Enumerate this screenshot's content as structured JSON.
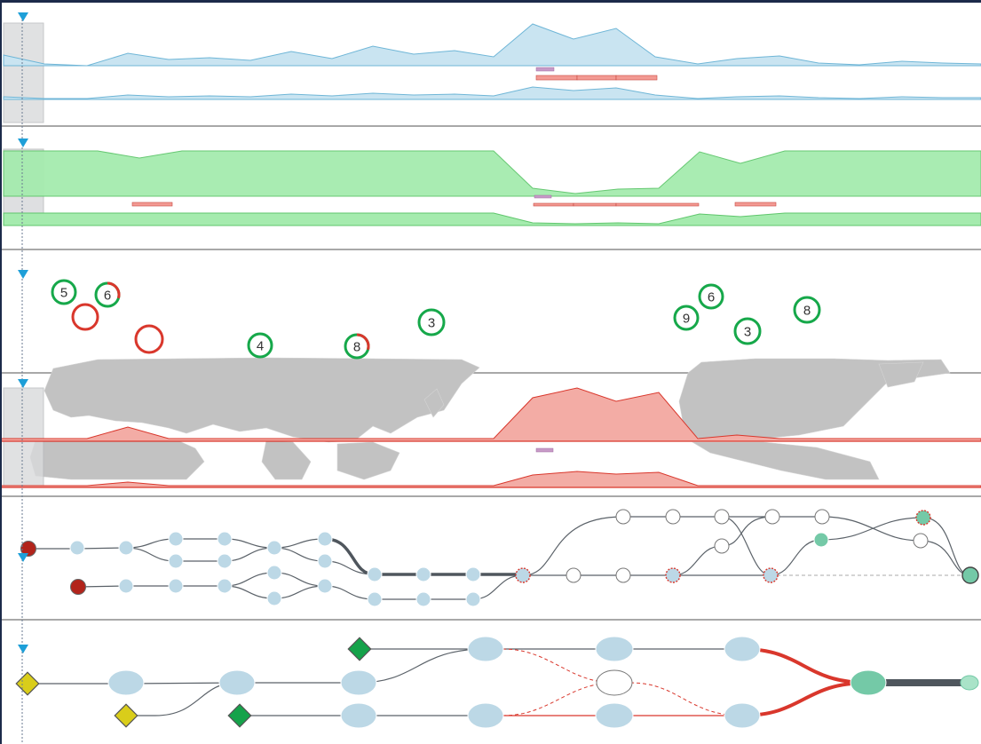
{
  "colors": {
    "accent": "#1e9fd8",
    "panel_divider": "#8c8c8c",
    "area_blue_fill": "#c9e4f1",
    "area_blue_stroke": "#6fb6d7",
    "area_green_fill": "#a5ebae",
    "area_green_stroke": "#5fc66c",
    "area_red_fill": "#f3aca5",
    "area_red_stroke": "#d9372c",
    "bar_red": "#f29a93",
    "bar_purple": "#c79ac7",
    "badge_green": "#16a84a",
    "badge_red": "#d9372c",
    "map_gray": "#c2c2c2",
    "node_blue": "#bcd8e6",
    "node_teal": "#74c9a7",
    "node_darkred": "#b2241b",
    "diamond_yellow": "#d9cd1a",
    "diamond_green": "#15a24a",
    "edge_dark": "#5b6269"
  },
  "badges": [
    {
      "label": "5",
      "state": "green"
    },
    {
      "label": "6",
      "state": "green-red"
    },
    {
      "label": "",
      "state": "red"
    },
    {
      "label": "",
      "state": "red"
    },
    {
      "label": "4",
      "state": "green"
    },
    {
      "label": "8",
      "state": "green-red"
    },
    {
      "label": "3",
      "state": "green"
    },
    {
      "label": "9",
      "state": "green"
    },
    {
      "label": "6",
      "state": "green"
    },
    {
      "label": "3",
      "state": "green"
    },
    {
      "label": "8",
      "state": "green"
    }
  ]
}
